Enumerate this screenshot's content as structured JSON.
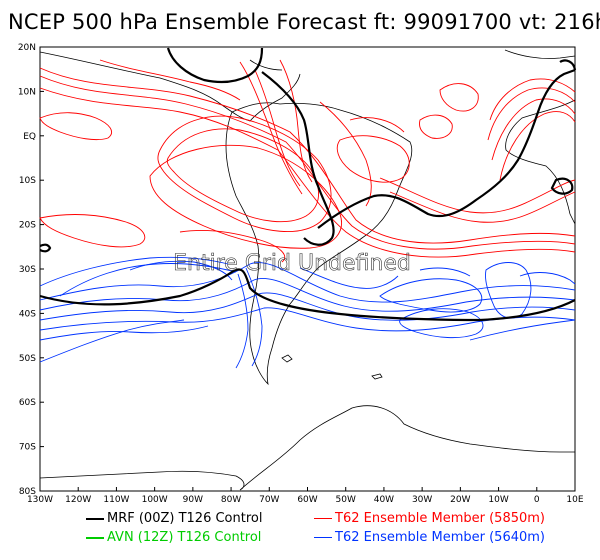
{
  "title": "NCEP 500 hPa Ensemble Forecast  ft: 99091700 vt: 216h",
  "overlay_text": "Entire Grid Undefined",
  "lat_labels": [
    "20N",
    "10N",
    "EQ",
    "10S",
    "20S",
    "30S",
    "40S",
    "50S",
    "60S",
    "70S",
    "80S"
  ],
  "lon_labels": [
    "130W",
    "120W",
    "110W",
    "100W",
    "90W",
    "80W",
    "70W",
    "60W",
    "50W",
    "40W",
    "30W",
    "20W",
    "10W",
    "0",
    "10E"
  ],
  "legend": [
    {
      "label": "MRF (00Z) T126 Control",
      "color": "#000000",
      "text_color": "#000000"
    },
    {
      "label": "AVN (12Z) T126 Control",
      "color": "#00cc00",
      "text_color": "#00cc00"
    },
    {
      "label": "T62 Ensemble Member (5850m)",
      "color": "#ff0000",
      "text_color": "#ff0000"
    },
    {
      "label": "T62 Ensemble Member (5640m)",
      "color": "#0033ff",
      "text_color": "#0033ff"
    }
  ],
  "colors": {
    "red": "#ff0000",
    "blue": "#0033ff",
    "black": "#000000",
    "coast": "#000000"
  }
}
